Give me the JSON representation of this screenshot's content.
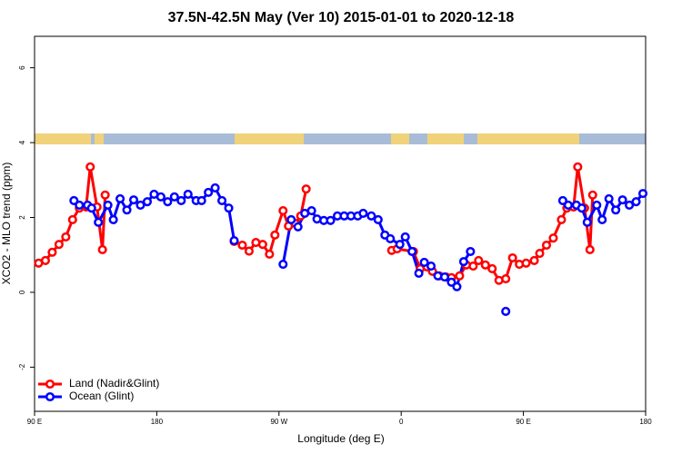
{
  "chart_data": {
    "type": "line",
    "title": "37.5N-42.5N May (Ver 10)   2015-01-01 to 2020-12-18",
    "x_label": "Longitude (deg E)",
    "y_label": "XCO2 - MLO trend (ppm)",
    "xlim": [
      90,
      540
    ],
    "ylim": [
      -3.18,
      6.84
    ],
    "xticks": [
      {
        "value": 90,
        "label": "90 E"
      },
      180,
      {
        "value": 270,
        "label": "90 W"
      },
      {
        "value": 360,
        "label": "0"
      },
      {
        "value": 450,
        "label": "90 E"
      },
      {
        "value": 540,
        "label": "180"
      }
    ],
    "yticks": [
      -2,
      0,
      2,
      4,
      6
    ],
    "legend": "bottom-left",
    "series": [
      {
        "name": "Land (Nadir&Glint)",
        "color": "#ff0000",
        "x": [
          93,
          98,
          103,
          108,
          113,
          118,
          123,
          128,
          131,
          136,
          140,
          142,
          null,
          237,
          243,
          248,
          253,
          258,
          263,
          267,
          273,
          277,
          282,
          286,
          290,
          null,
          353,
          357,
          369,
          374,
          379,
          383,
          388,
          393,
          397,
          403,
          408,
          413,
          417,
          422,
          427,
          432,
          437,
          442,
          447,
          452,
          458,
          462,
          467,
          472,
          478,
          482,
          487,
          490,
          495,
          499,
          501
        ],
        "values": [
          0.78,
          0.85,
          1.07,
          1.28,
          1.48,
          1.94,
          2.25,
          2.28,
          3.35,
          2.28,
          1.14,
          2.6,
          null,
          1.36,
          1.26,
          1.1,
          1.33,
          1.28,
          1.02,
          1.53,
          2.18,
          1.77,
          1.84,
          2.04,
          2.76,
          null,
          1.12,
          1.16,
          1.09,
          0.63,
          0.68,
          0.56,
          0.44,
          0.41,
          0.39,
          0.44,
          0.73,
          0.7,
          0.85,
          0.73,
          0.63,
          0.32,
          0.36,
          0.92,
          0.75,
          0.78,
          0.85,
          1.04,
          1.26,
          1.45,
          1.94,
          2.25,
          2.28,
          3.35,
          2.25,
          1.14,
          2.6
        ]
      },
      {
        "name": "Ocean (Glint)",
        "color": "#0000ff",
        "x": [
          119,
          123,
          129,
          132,
          137,
          144,
          148,
          153,
          158,
          163,
          168,
          173,
          178,
          183,
          188,
          193,
          198,
          203,
          209,
          213,
          218,
          223,
          228,
          233,
          237,
          null,
          273,
          279,
          284,
          289,
          294,
          298,
          303,
          308,
          313,
          318,
          323,
          328,
          332,
          338,
          343,
          348,
          352,
          359,
          363,
          368,
          373,
          377,
          382,
          387,
          392,
          397,
          401,
          406,
          411,
          null,
          437,
          null,
          479,
          483,
          489,
          493,
          497,
          504,
          508,
          513,
          518,
          523,
          528,
          533,
          538
        ],
        "values": [
          2.45,
          2.33,
          2.33,
          2.25,
          1.87,
          2.33,
          1.94,
          2.5,
          2.2,
          2.47,
          2.33,
          2.42,
          2.62,
          2.55,
          2.42,
          2.55,
          2.45,
          2.62,
          2.45,
          2.45,
          2.67,
          2.79,
          2.45,
          2.25,
          1.38,
          null,
          0.75,
          1.94,
          1.75,
          2.11,
          2.18,
          1.96,
          1.92,
          1.92,
          2.04,
          2.04,
          2.04,
          2.04,
          2.11,
          2.04,
          1.94,
          1.53,
          1.43,
          1.28,
          1.48,
          1.09,
          0.51,
          0.8,
          0.7,
          0.44,
          0.41,
          0.27,
          0.15,
          0.82,
          1.09,
          null,
          -0.51,
          null,
          2.45,
          2.33,
          2.33,
          2.25,
          1.87,
          2.33,
          1.94,
          2.5,
          2.2,
          2.47,
          2.33,
          2.42,
          2.64
        ]
      }
    ]
  }
}
